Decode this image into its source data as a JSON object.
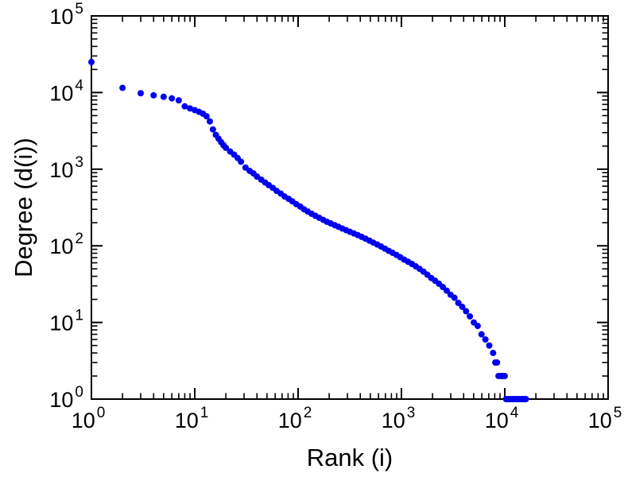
{
  "figure": {
    "background": "#ffffff",
    "frame_color": "#000000"
  },
  "chart_data": {
    "type": "scatter",
    "title": "",
    "xlabel": "Rank (i)",
    "ylabel": "Degree (d(i))",
    "x_scale": "log",
    "y_scale": "log",
    "xlim": [
      1,
      100000
    ],
    "ylim": [
      1,
      100000
    ],
    "grid": false,
    "legend": null,
    "tick_label_base": "10",
    "x_tick_exponents": [
      0,
      1,
      2,
      3,
      4,
      5
    ],
    "y_tick_exponents": [
      0,
      1,
      2,
      3,
      4,
      5
    ],
    "marker_color": "#0000ee",
    "marker_size": 4,
    "points": [
      [
        1,
        25000
      ],
      [
        2,
        11500
      ],
      [
        3,
        9800
      ],
      [
        4,
        9200
      ],
      [
        5,
        8800
      ],
      [
        6,
        8400
      ],
      [
        7,
        7900
      ],
      [
        8,
        6600
      ],
      [
        9,
        6200
      ],
      [
        10,
        5900
      ],
      [
        11,
        5600
      ],
      [
        12,
        5300
      ],
      [
        13,
        4900
      ],
      [
        14,
        4200
      ],
      [
        15,
        3300
      ],
      [
        16,
        2800
      ],
      [
        17,
        2500
      ],
      [
        18,
        2250
      ],
      [
        19,
        2050
      ],
      [
        20,
        1900
      ],
      [
        22,
        1700
      ],
      [
        24,
        1550
      ],
      [
        26,
        1400
      ],
      [
        28,
        1250
      ],
      [
        31,
        1050
      ],
      [
        34,
        950
      ],
      [
        37,
        880
      ],
      [
        40,
        800
      ],
      [
        44,
        730
      ],
      [
        48,
        670
      ],
      [
        52,
        620
      ],
      [
        57,
        570
      ],
      [
        62,
        520
      ],
      [
        68,
        480
      ],
      [
        74,
        440
      ],
      [
        81,
        410
      ],
      [
        88,
        380
      ],
      [
        96,
        350
      ],
      [
        105,
        325
      ],
      [
        114,
        300
      ],
      [
        124,
        280
      ],
      [
        135,
        262
      ],
      [
        147,
        246
      ],
      [
        160,
        232
      ],
      [
        175,
        218
      ],
      [
        190,
        206
      ],
      [
        207,
        196
      ],
      [
        226,
        186
      ],
      [
        246,
        177
      ],
      [
        268,
        168
      ],
      [
        292,
        160
      ],
      [
        318,
        152
      ],
      [
        347,
        145
      ],
      [
        378,
        138
      ],
      [
        412,
        131
      ],
      [
        449,
        124
      ],
      [
        490,
        117
      ],
      [
        534,
        110
      ],
      [
        582,
        104
      ],
      [
        634,
        98
      ],
      [
        691,
        92
      ],
      [
        753,
        86
      ],
      [
        821,
        81
      ],
      [
        895,
        76
      ],
      [
        975,
        71
      ],
      [
        1063,
        66
      ],
      [
        1158,
        62
      ],
      [
        1263,
        58
      ],
      [
        1376,
        54
      ],
      [
        1500,
        50
      ],
      [
        1635,
        46
      ],
      [
        1782,
        42
      ],
      [
        1943,
        38
      ],
      [
        2118,
        35
      ],
      [
        2308,
        32
      ],
      [
        2516,
        29
      ],
      [
        2743,
        26
      ],
      [
        2990,
        23
      ],
      [
        3259,
        21
      ],
      [
        3552,
        18
      ],
      [
        3872,
        16
      ],
      [
        4221,
        14
      ],
      [
        4601,
        12
      ],
      [
        5015,
        10
      ],
      [
        5467,
        9
      ],
      [
        5959,
        7
      ],
      [
        6495,
        6
      ],
      [
        7080,
        5
      ],
      [
        7717,
        4
      ],
      [
        8100,
        3
      ],
      [
        8412,
        3
      ],
      [
        8700,
        2
      ],
      [
        9169,
        2
      ],
      [
        9600,
        2
      ],
      [
        9994,
        2
      ],
      [
        10300,
        1
      ],
      [
        10894,
        1
      ],
      [
        11300,
        1
      ],
      [
        11874,
        1
      ],
      [
        12400,
        1
      ],
      [
        12943,
        1
      ],
      [
        13500,
        1
      ],
      [
        14108,
        1
      ],
      [
        14700,
        1
      ],
      [
        15378,
        1
      ],
      [
        16000,
        1
      ]
    ]
  }
}
